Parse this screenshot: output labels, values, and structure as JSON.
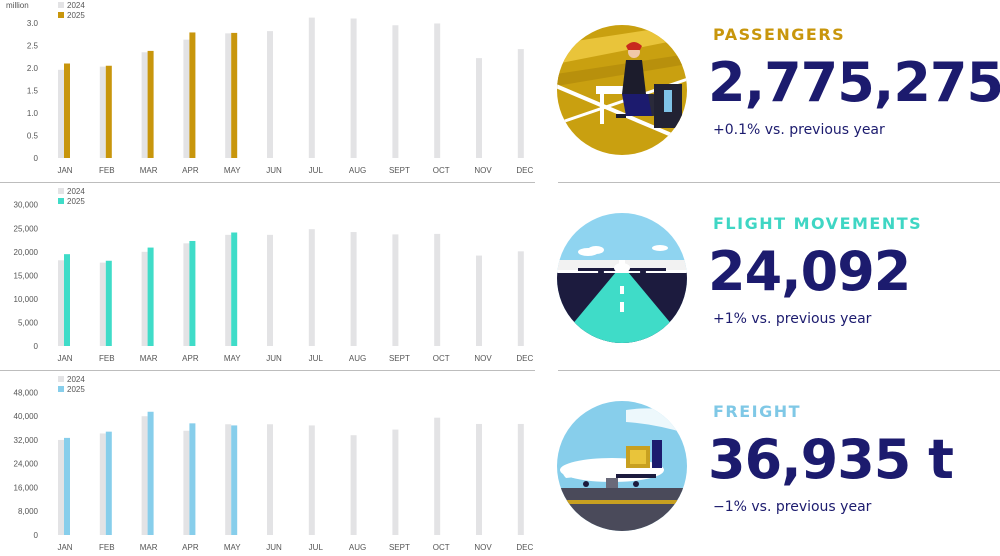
{
  "colors": {
    "navy": "#1c1b6e",
    "bar_2024": "#e3e3e5",
    "passengers": "#c8960c",
    "flight_movements": "#3fdcc8",
    "freight": "#87ceeb",
    "title_freight": "#7fc8e6",
    "divider": "#bdbdbd"
  },
  "kpis": {
    "passengers": {
      "title": "PASSENGERS",
      "value": "2,775,275",
      "change": "+0.1% vs. previous year"
    },
    "flight_movements": {
      "title": "FLIGHT MOVEMENTS",
      "value": "24,092",
      "change": "+1% vs. previous year"
    },
    "freight": {
      "title": "FREIGHT",
      "value": "36,935 t",
      "change": "−1% vs. previous year"
    }
  },
  "chart_data": [
    {
      "id": "passengers",
      "type": "bar",
      "unit_label": "million",
      "categories": [
        "JAN",
        "FEB",
        "MAR",
        "APR",
        "MAY",
        "JUN",
        "JUL",
        "AUG",
        "SEPT",
        "OCT",
        "NOV",
        "DEC"
      ],
      "yticks": [
        "0",
        "0.5",
        "1.0",
        "1.5",
        "2.0",
        "2.5",
        "3.0"
      ],
      "ylim": [
        0,
        3.2
      ],
      "legend": [
        "2024",
        "2025"
      ],
      "legend_position": "top-left",
      "series": [
        {
          "name": "2024",
          "values": [
            1.96,
            2.03,
            2.35,
            2.63,
            2.77,
            2.82,
            3.12,
            3.1,
            2.95,
            2.99,
            2.22,
            2.42
          ]
        },
        {
          "name": "2025",
          "values": [
            2.1,
            2.05,
            2.38,
            2.79,
            2.78,
            null,
            null,
            null,
            null,
            null,
            null,
            null
          ]
        }
      ]
    },
    {
      "id": "flight_movements",
      "type": "bar",
      "unit_label": "",
      "categories": [
        "JAN",
        "FEB",
        "MAR",
        "APR",
        "MAY",
        "JUN",
        "JUL",
        "AUG",
        "SEPT",
        "OCT",
        "NOV",
        "DEC"
      ],
      "yticks": [
        "0",
        "5,000",
        "10,000",
        "15,000",
        "20,000",
        "25,000",
        "30,000"
      ],
      "ylim": [
        0,
        31000
      ],
      "legend": [
        "2024",
        "2025"
      ],
      "legend_position": "top-left",
      "series": [
        {
          "name": "2024",
          "values": [
            18200,
            17700,
            20000,
            21800,
            23600,
            23600,
            24800,
            24200,
            23700,
            23800,
            19200,
            20100
          ]
        },
        {
          "name": "2025",
          "values": [
            19500,
            18100,
            20900,
            22300,
            24100,
            null,
            null,
            null,
            null,
            null,
            null,
            null
          ]
        }
      ]
    },
    {
      "id": "freight",
      "type": "bar",
      "unit_label": "",
      "categories": [
        "JAN",
        "FEB",
        "MAR",
        "APR",
        "MAY",
        "JUN",
        "JUL",
        "AUG",
        "SEPT",
        "OCT",
        "NOV",
        "DEC"
      ],
      "yticks": [
        "0",
        "8,000",
        "16,000",
        "24,000",
        "32,000",
        "40,000",
        "48,000"
      ],
      "ylim": [
        0,
        49500
      ],
      "legend": [
        "2024",
        "2025"
      ],
      "legend_position": "top-left",
      "series": [
        {
          "name": "2024",
          "values": [
            32000,
            34200,
            40000,
            35100,
            37300,
            37300,
            36900,
            33600,
            35500,
            39500,
            37400,
            37400
          ]
        },
        {
          "name": "2025",
          "values": [
            32700,
            34800,
            41500,
            37600,
            36900,
            null,
            null,
            null,
            null,
            null,
            null,
            null
          ]
        }
      ]
    }
  ]
}
